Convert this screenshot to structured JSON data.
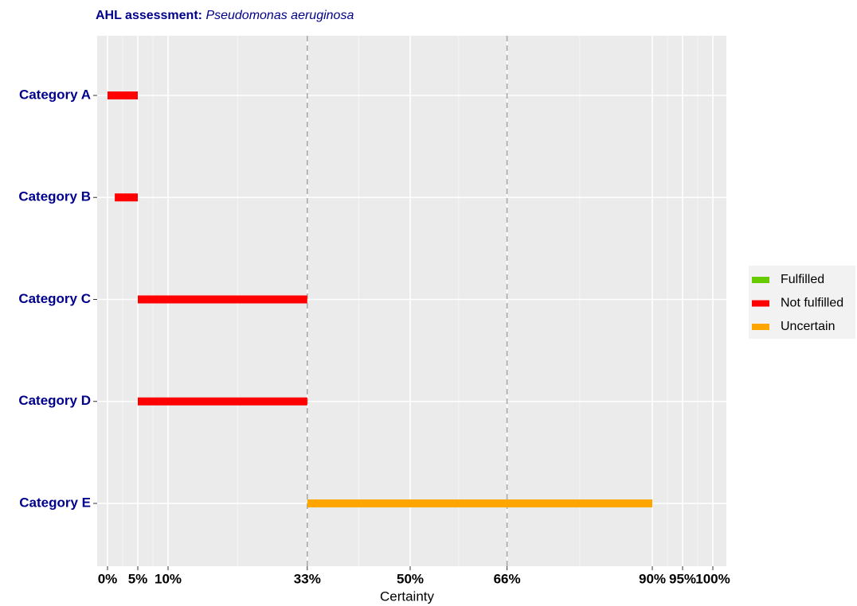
{
  "chart_data": {
    "type": "range-bar",
    "title": "AHL  assessment:",
    "title_italic": "Pseudomonas aeruginosa",
    "xlabel": "Certainty",
    "categories": [
      "Category A",
      "Category B",
      "Category C",
      "Category D",
      "Category E"
    ],
    "start": [
      0,
      1.2,
      5,
      5,
      33
    ],
    "end": [
      5,
      5,
      33,
      33,
      90
    ],
    "status": [
      "Not fulfilled",
      "Not fulfilled",
      "Not fulfilled",
      "Not fulfilled",
      "Uncertain"
    ],
    "legend": [
      {
        "name": "Fulfilled",
        "color": "#66cc00"
      },
      {
        "name": "Not fulfilled",
        "color": "#ff0000"
      },
      {
        "name": "Uncertain",
        "color": "#ffa500"
      }
    ],
    "xlim": [
      0,
      100
    ],
    "xticks": [
      {
        "value": 0,
        "label": "0%"
      },
      {
        "value": 5,
        "label": "5%"
      },
      {
        "value": 10,
        "label": "10%"
      },
      {
        "value": 33,
        "label": "33%"
      },
      {
        "value": 50,
        "label": "50%"
      },
      {
        "value": 66,
        "label": "66%"
      },
      {
        "value": 90,
        "label": "90%"
      },
      {
        "value": 95,
        "label": "95%"
      },
      {
        "value": 100,
        "label": "100%"
      }
    ],
    "vlines": [
      33,
      66
    ],
    "grid": true
  }
}
